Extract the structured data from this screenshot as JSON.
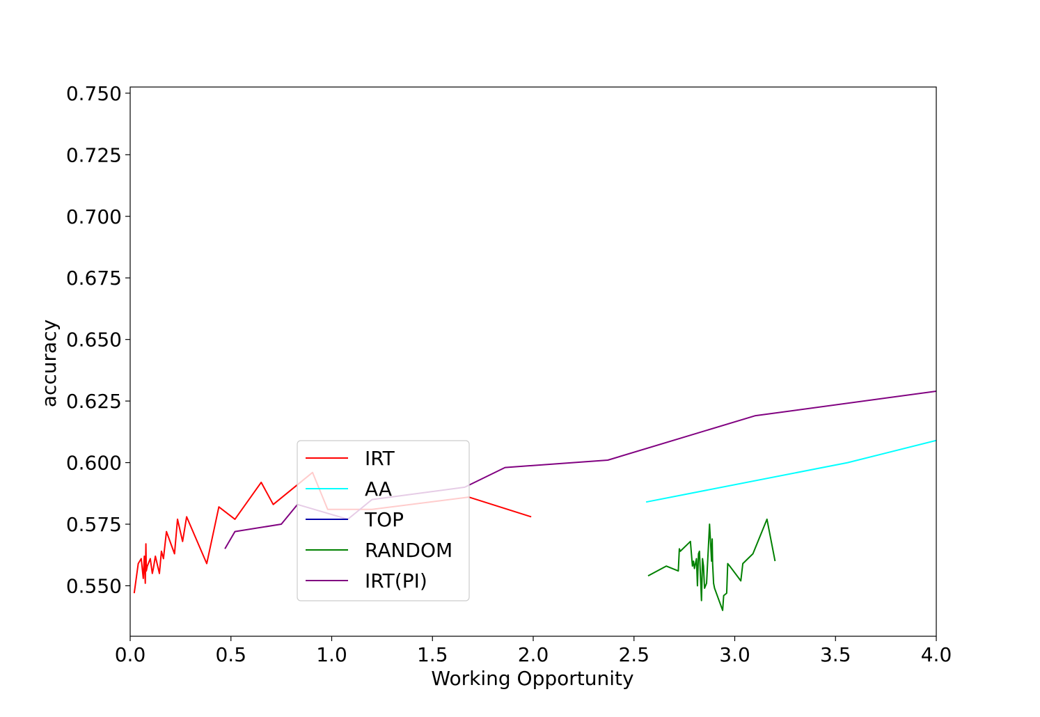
{
  "chart_data": {
    "type": "line",
    "xlabel": "Working Opportunity",
    "ylabel": "accuracy",
    "xlim": [
      0.0,
      4.0
    ],
    "ylim": [
      0.5295,
      0.7525
    ],
    "xticks": [
      "0.0",
      "0.5",
      "1.0",
      "1.5",
      "2.0",
      "2.5",
      "3.0",
      "3.5",
      "4.0"
    ],
    "xtick_values": [
      0,
      0.5,
      1.0,
      1.5,
      2.0,
      2.5,
      3.0,
      3.5,
      4.0
    ],
    "yticks": [
      "0.550",
      "0.575",
      "0.600",
      "0.625",
      "0.650",
      "0.675",
      "0.700",
      "0.725",
      "0.750"
    ],
    "ytick_values": [
      0.55,
      0.575,
      0.6,
      0.625,
      0.65,
      0.675,
      0.7,
      0.725,
      0.75
    ],
    "grid": false,
    "legend_position": "lower-center",
    "series": [
      {
        "name": "IRT",
        "color": "#ff0000",
        "x": [
          0.02,
          0.04,
          0.055,
          0.065,
          0.07,
          0.075,
          0.078,
          0.08,
          0.085,
          0.1,
          0.11,
          0.115,
          0.125,
          0.145,
          0.155,
          0.165,
          0.18,
          0.22,
          0.235,
          0.26,
          0.28,
          0.38,
          0.44,
          0.52,
          0.65,
          0.71,
          0.905,
          0.98,
          1.2,
          1.68,
          1.99
        ],
        "y": [
          0.547,
          0.559,
          0.561,
          0.553,
          0.562,
          0.551,
          0.567,
          0.556,
          0.558,
          0.561,
          0.555,
          0.557,
          0.562,
          0.555,
          0.564,
          0.561,
          0.572,
          0.563,
          0.577,
          0.568,
          0.578,
          0.559,
          0.582,
          0.577,
          0.592,
          0.583,
          0.596,
          0.581,
          0.581,
          0.586,
          0.578
        ]
      },
      {
        "name": "AA",
        "color": "#00ffff",
        "x": [
          2.56,
          3.56,
          4.0
        ],
        "y": [
          0.584,
          0.6,
          0.609
        ]
      },
      {
        "name": "TOP",
        "color": "#0000aa",
        "x": [],
        "y": []
      },
      {
        "name": "RANDOM",
        "color": "#008000",
        "x": [
          2.57,
          2.66,
          2.72,
          2.725,
          2.73,
          2.78,
          2.79,
          2.795,
          2.8,
          2.81,
          2.815,
          2.82,
          2.825,
          2.835,
          2.84,
          2.845,
          2.85,
          2.86,
          2.875,
          2.885,
          2.888,
          2.89,
          2.895,
          2.9,
          2.94,
          2.945,
          2.96,
          2.965,
          2.975,
          3.03,
          3.04,
          3.09,
          3.16,
          3.2
        ],
        "y": [
          0.554,
          0.558,
          0.556,
          0.565,
          0.564,
          0.568,
          0.558,
          0.56,
          0.557,
          0.561,
          0.55,
          0.563,
          0.564,
          0.544,
          0.561,
          0.558,
          0.549,
          0.551,
          0.575,
          0.56,
          0.569,
          0.559,
          0.551,
          0.549,
          0.54,
          0.546,
          0.547,
          0.559,
          0.558,
          0.552,
          0.559,
          0.563,
          0.577,
          0.56
        ]
      },
      {
        "name": "IRT(PI)",
        "color": "#800080",
        "x": [
          0.47,
          0.52,
          0.75,
          0.83,
          1.08,
          1.2,
          1.66,
          1.86,
          2.37,
          3.1,
          4.0
        ],
        "y": [
          0.565,
          0.572,
          0.575,
          0.583,
          0.577,
          0.585,
          0.59,
          0.598,
          0.601,
          0.619,
          0.629
        ]
      }
    ]
  }
}
